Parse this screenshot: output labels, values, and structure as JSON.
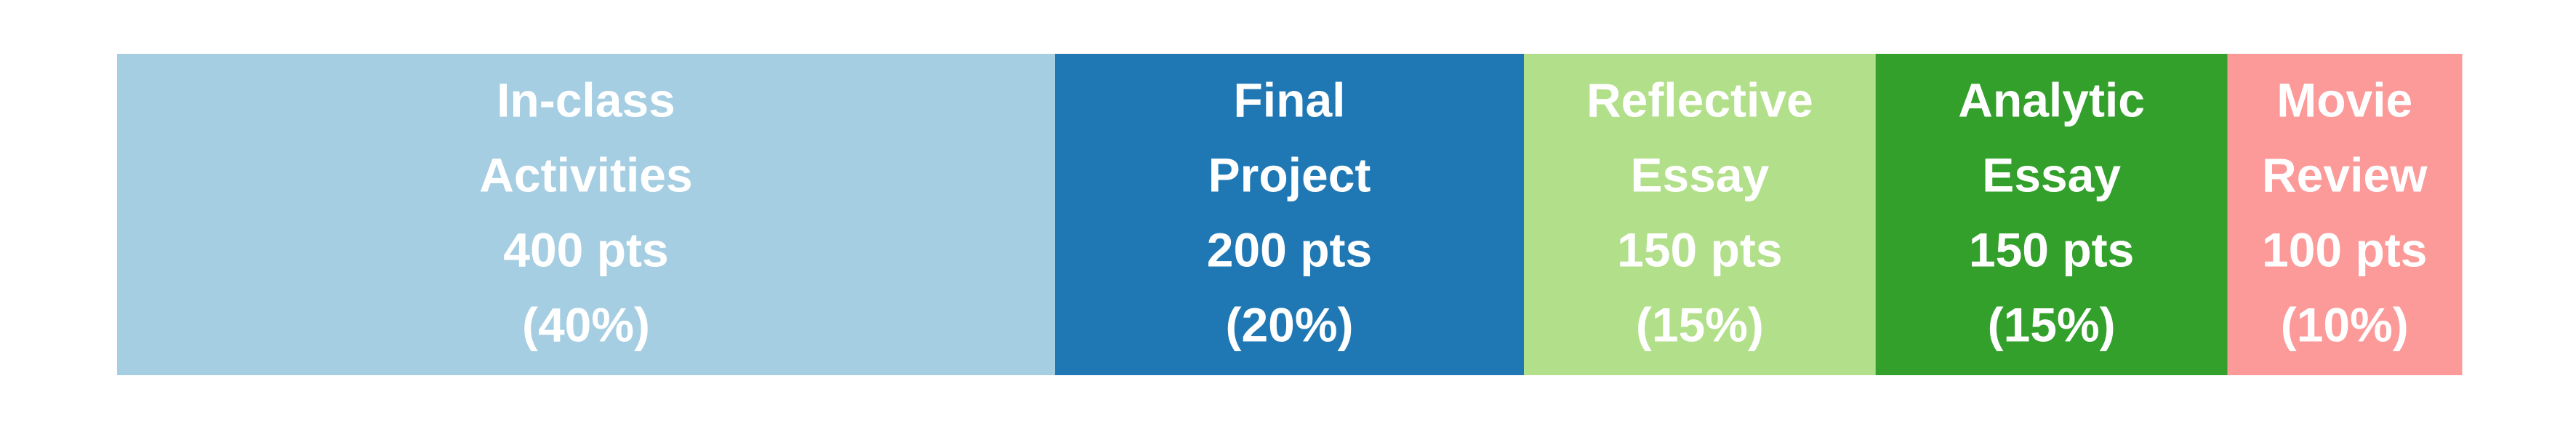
{
  "chart_data": {
    "type": "bar",
    "orientation": "horizontal-stacked",
    "total": 1000,
    "categories": [
      "In-class Activities",
      "Final Project",
      "Reflective Essay",
      "Analytic Essay",
      "Movie Review"
    ],
    "values": [
      400,
      200,
      150,
      150,
      100
    ],
    "segments": [
      {
        "name": "In-class Activities",
        "value": 400,
        "color": "#a6cee3",
        "lines": [
          "In-class",
          "Activities",
          "400 pts",
          "(40%)"
        ]
      },
      {
        "name": "Final Project",
        "value": 200,
        "color": "#1f78b4",
        "lines": [
          "Final",
          "Project",
          "200 pts",
          "(20%)"
        ]
      },
      {
        "name": "Reflective Essay",
        "value": 150,
        "color": "#b2df8a",
        "lines": [
          "Reflective",
          "Essay",
          "150 pts",
          "(15%)"
        ]
      },
      {
        "name": "Analytic Essay",
        "value": 150,
        "color": "#33a02c",
        "lines": [
          "Analytic",
          "Essay",
          "150 pts",
          "(15%)"
        ]
      },
      {
        "name": "Movie Review",
        "value": 100,
        "color": "#fb9a99",
        "lines": [
          "Movie",
          "Review",
          "100 pts",
          "(10%)"
        ]
      }
    ],
    "title": "",
    "xlabel": "",
    "ylabel": "",
    "grid": false,
    "legend": "none"
  }
}
